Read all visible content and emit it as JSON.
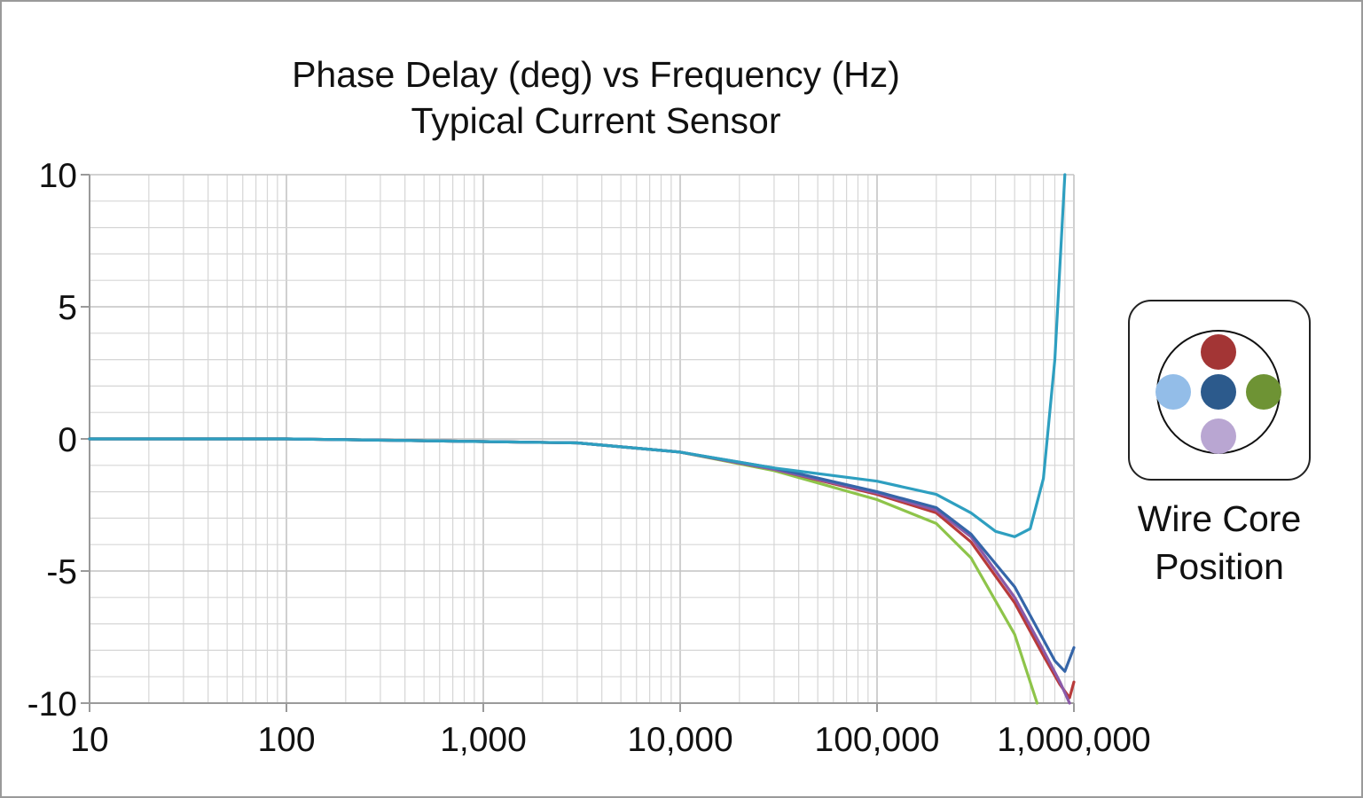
{
  "chart_data": {
    "type": "line",
    "title": "Phase Delay (deg) vs Frequency (Hz)",
    "subtitle": "Typical Current Sensor",
    "xscale": "log",
    "xlim": [
      10,
      1000000
    ],
    "ylim": [
      -10,
      10
    ],
    "grid": true,
    "x_ticks": [
      {
        "value": 10,
        "label": "10"
      },
      {
        "value": 100,
        "label": "100"
      },
      {
        "value": 1000,
        "label": "1,000"
      },
      {
        "value": 10000,
        "label": "10,000"
      },
      {
        "value": 100000,
        "label": "100,000"
      },
      {
        "value": 1000000,
        "label": "1,000,000"
      }
    ],
    "y_ticks": [
      {
        "value": 10,
        "label": "10"
      },
      {
        "value": 5,
        "label": "5"
      },
      {
        "value": 0,
        "label": "0"
      },
      {
        "value": -5,
        "label": "-5"
      },
      {
        "value": -10,
        "label": "-10"
      }
    ],
    "series": [
      {
        "color": "#2e9fc0",
        "x": [
          10,
          100,
          1000,
          3000,
          10000,
          30000,
          100000,
          200000,
          300000,
          400000,
          500000,
          600000,
          700000,
          800000,
          900000
        ],
        "y": [
          0,
          0,
          -0.1,
          -0.15,
          -0.5,
          -1.1,
          -1.6,
          -2.1,
          -2.8,
          -3.5,
          -3.7,
          -3.4,
          -1.5,
          3.0,
          10.0
        ]
      },
      {
        "color": "#3565a8",
        "x": [
          10,
          100,
          1000,
          3000,
          10000,
          30000,
          100000,
          200000,
          300000,
          500000,
          700000,
          800000,
          900000,
          1000000
        ],
        "y": [
          0,
          0,
          -0.1,
          -0.15,
          -0.5,
          -1.1,
          -2.0,
          -2.6,
          -3.6,
          -5.6,
          -7.6,
          -8.4,
          -8.8,
          -7.9
        ]
      },
      {
        "color": "#8a5aa8",
        "x": [
          10,
          100,
          1000,
          3000,
          10000,
          30000,
          100000,
          200000,
          300000,
          500000,
          700000,
          850000,
          950000
        ],
        "y": [
          0,
          0,
          -0.1,
          -0.15,
          -0.5,
          -1.15,
          -2.05,
          -2.7,
          -3.7,
          -6.0,
          -8.0,
          -9.2,
          -10.0
        ]
      },
      {
        "color": "#b83a3a",
        "x": [
          10,
          100,
          1000,
          3000,
          10000,
          30000,
          100000,
          200000,
          300000,
          500000,
          700000,
          850000,
          950000,
          1000000
        ],
        "y": [
          0,
          0,
          -0.1,
          -0.15,
          -0.5,
          -1.15,
          -2.1,
          -2.8,
          -3.9,
          -6.2,
          -8.2,
          -9.3,
          -9.8,
          -9.2
        ]
      },
      {
        "color": "#8ec44a",
        "x": [
          10,
          100,
          1000,
          3000,
          10000,
          30000,
          100000,
          200000,
          300000,
          500000,
          650000
        ],
        "y": [
          0,
          0,
          -0.1,
          -0.15,
          -0.5,
          -1.2,
          -2.3,
          -3.2,
          -4.5,
          -7.4,
          -10.0
        ]
      }
    ]
  },
  "legend": {
    "label_line1": "Wire Core",
    "label_line2": "Position",
    "dots": [
      {
        "position": "top",
        "color": "#a33535"
      },
      {
        "position": "left",
        "color": "#93bde8"
      },
      {
        "position": "center",
        "color": "#2c5a8c"
      },
      {
        "position": "right",
        "color": "#6e9334"
      },
      {
        "position": "bottom",
        "color": "#b9a6d2"
      }
    ]
  }
}
